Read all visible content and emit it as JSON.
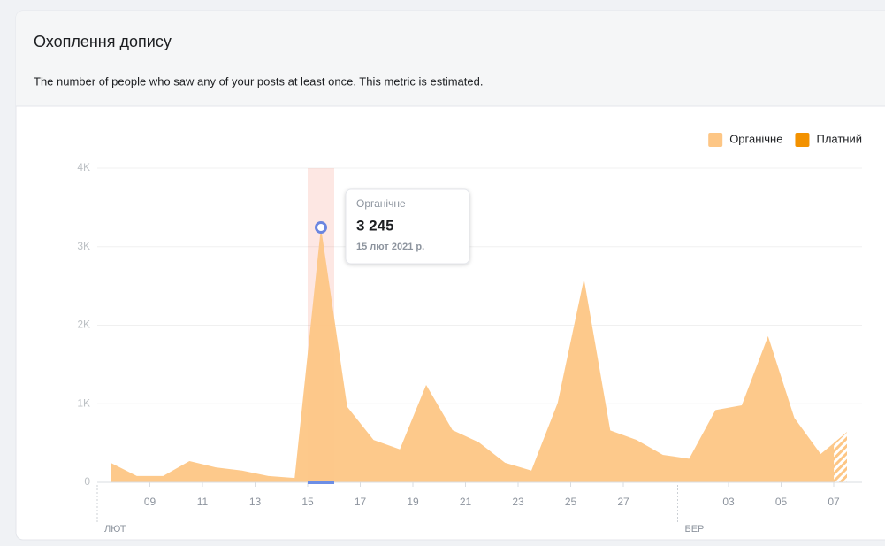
{
  "chart_data": {
    "type": "area",
    "title": "Охоплення допису",
    "subtitle": "The number of people who saw any of your posts at least once. This metric is estimated.",
    "categories": [
      null,
      null,
      "09",
      null,
      "11",
      null,
      "13",
      null,
      "15",
      null,
      "17",
      null,
      "19",
      null,
      "21",
      null,
      "23",
      null,
      "25",
      null,
      "27",
      null,
      null,
      null,
      "03",
      null,
      "05",
      null,
      "07"
    ],
    "months": [
      "ЛЮТ",
      null,
      null,
      null,
      null,
      null,
      null,
      null,
      null,
      null,
      null,
      null,
      null,
      null,
      null,
      null,
      null,
      null,
      null,
      null,
      null,
      null,
      "БЕР",
      null,
      null,
      null,
      null,
      null,
      null
    ],
    "series": [
      {
        "name": "Органічне",
        "color": "#fdc685",
        "values": [
          250,
          80,
          80,
          270,
          190,
          150,
          80,
          55,
          3245,
          960,
          540,
          420,
          1240,
          665,
          510,
          250,
          150,
          1010,
          2590,
          660,
          540,
          350,
          300,
          920,
          980,
          1860,
          820,
          360,
          640
        ],
        "value_labels": [
          null,
          null,
          null,
          null,
          null,
          null,
          null,
          null,
          "3 245",
          null,
          null,
          null,
          null,
          null,
          null,
          null,
          null,
          null,
          null,
          null,
          null,
          null,
          null,
          null,
          null,
          null,
          null,
          null,
          null
        ]
      },
      {
        "name": "Платний",
        "color": "#f39200",
        "values": [
          0,
          0,
          0,
          0,
          0,
          0,
          0,
          0,
          0,
          0,
          0,
          0,
          0,
          0,
          0,
          0,
          0,
          0,
          0,
          0,
          0,
          0,
          0,
          0,
          0,
          0,
          0,
          0,
          0
        ]
      }
    ],
    "tooltip_date": "15 лют 2021 р.",
    "ylim": [
      0,
      4000
    ],
    "yticks": [
      0,
      {
        "value": 1000,
        "label": "1K"
      },
      {
        "value": 2000,
        "label": "2K"
      },
      {
        "value": 3000,
        "label": "3K"
      },
      {
        "value": 4000,
        "label": "4K"
      }
    ],
    "grid": true,
    "legend": "top-right"
  }
}
